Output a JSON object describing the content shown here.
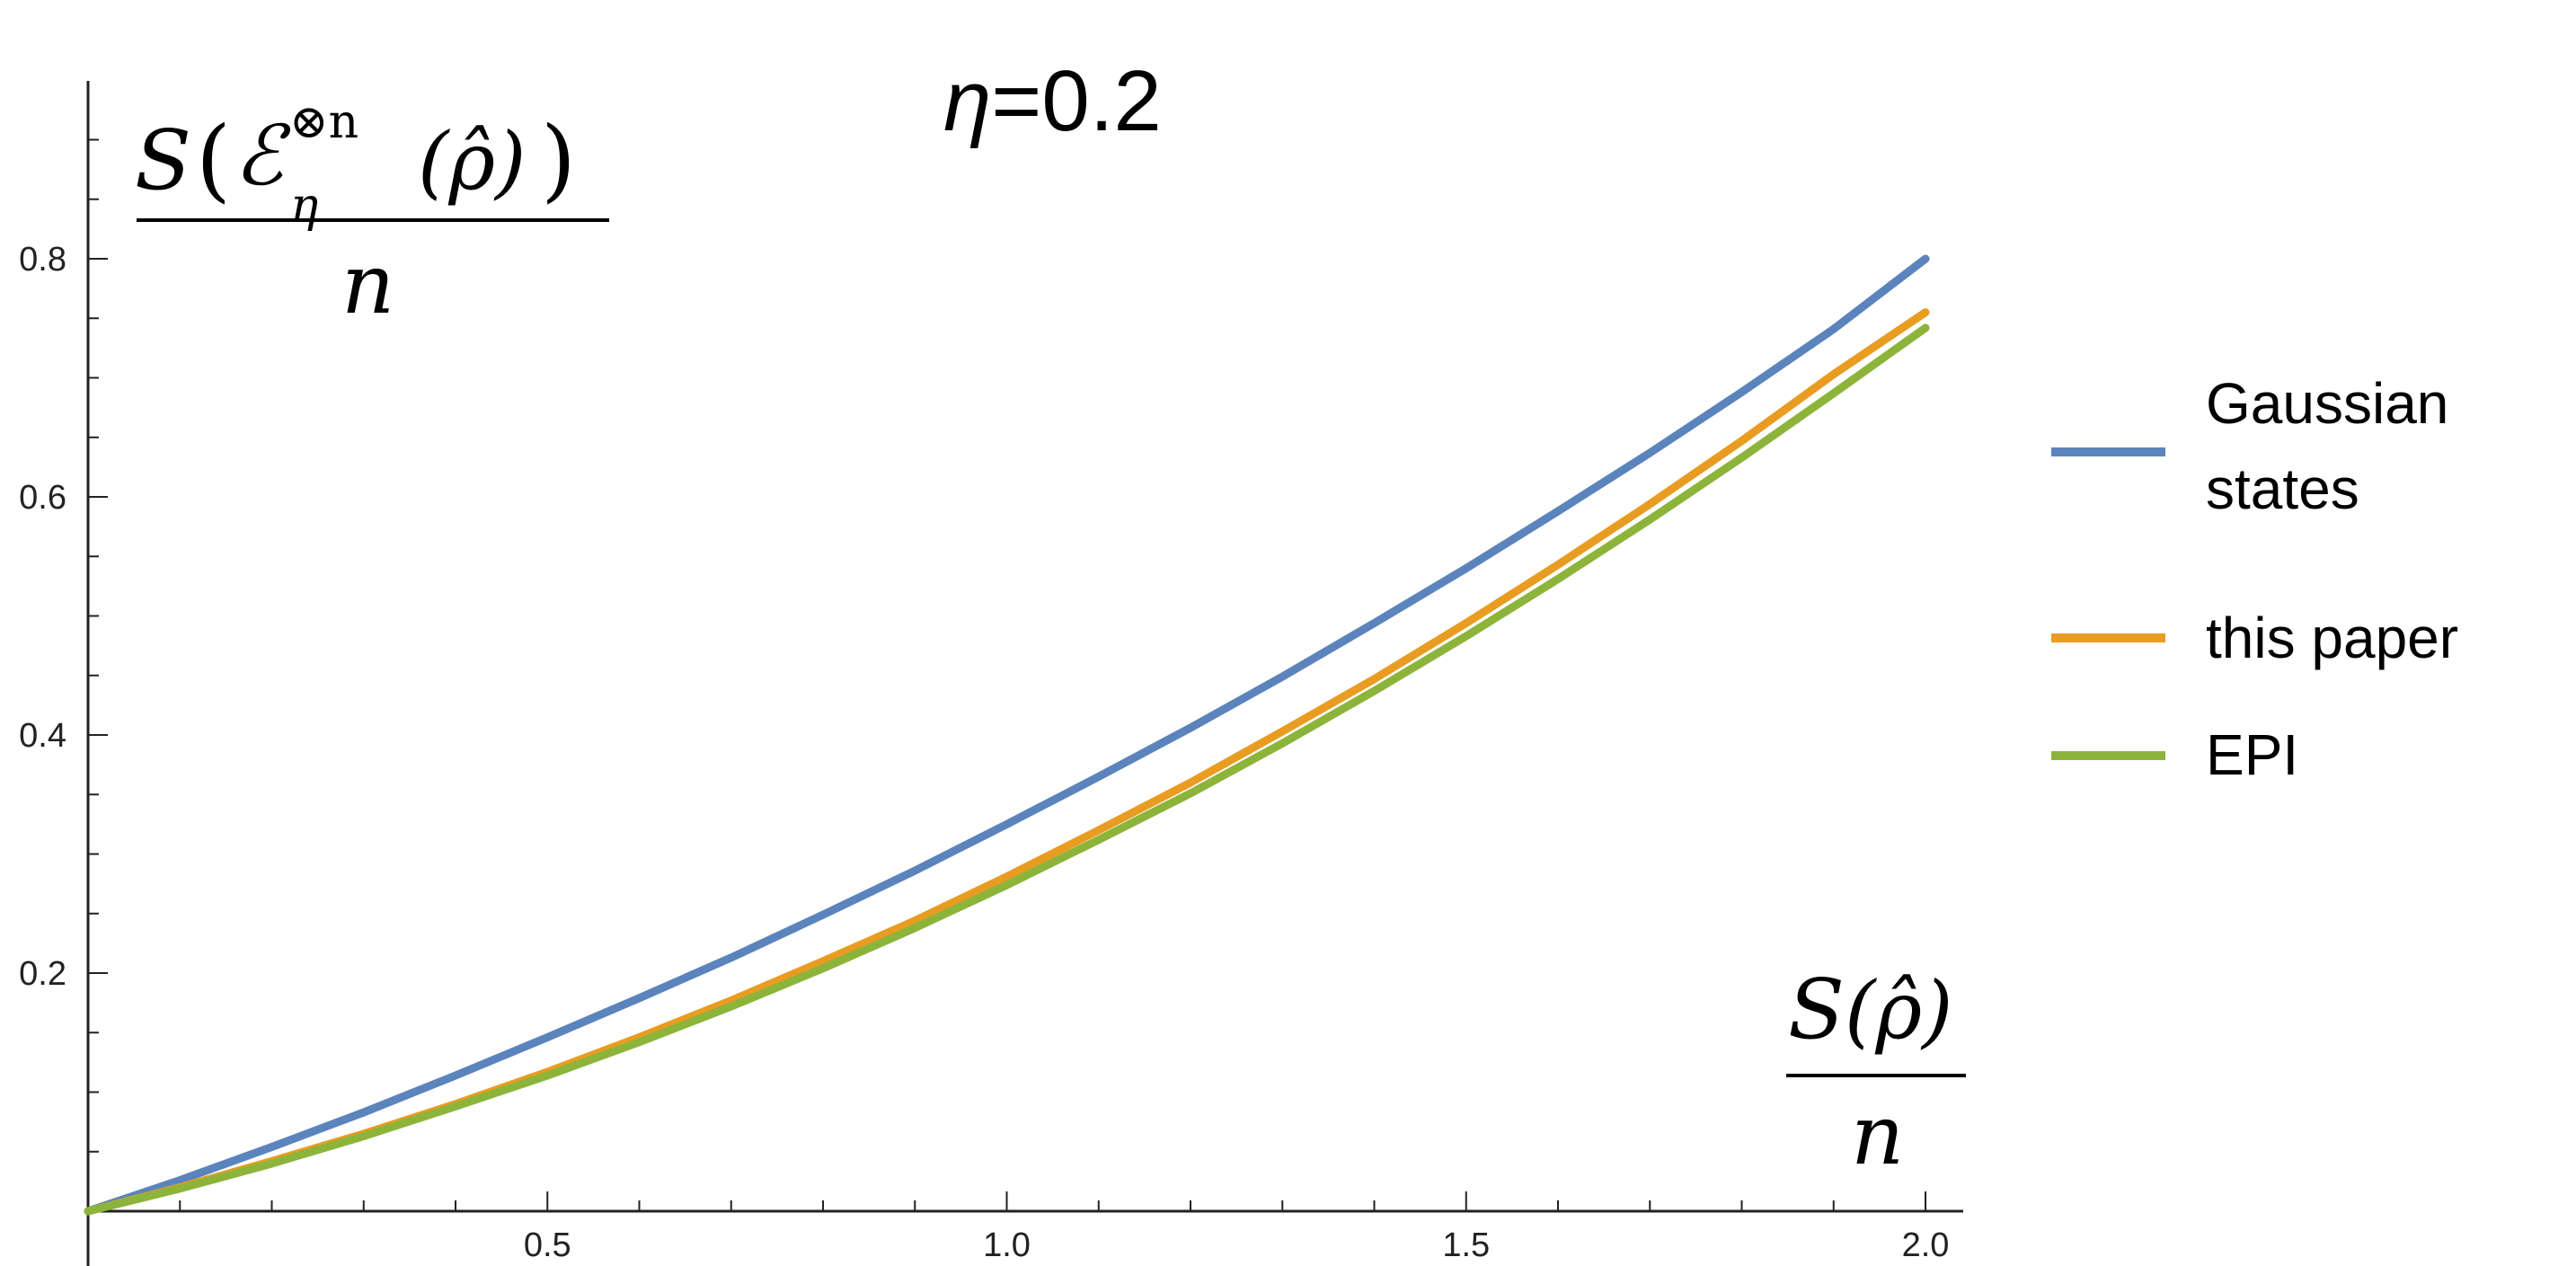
{
  "chart_data": {
    "type": "line",
    "title": {
      "symbol": "η",
      "value_text": "=0.2"
    },
    "eta": 0.2,
    "xlim": [
      0,
      2.0
    ],
    "ylim": [
      0,
      0.9
    ],
    "x_ticks": [
      {
        "value": 0.5,
        "label": "0.5"
      },
      {
        "value": 1.0,
        "label": "1.0"
      },
      {
        "value": 1.5,
        "label": "1.5"
      },
      {
        "value": 2.0,
        "label": "2.0"
      }
    ],
    "y_ticks": [
      {
        "value": 0.2,
        "label": "0.2"
      },
      {
        "value": 0.4,
        "label": "0.4"
      },
      {
        "value": 0.6,
        "label": "0.6"
      },
      {
        "value": 0.8,
        "label": "0.8"
      }
    ],
    "x_minor_step": 0.1,
    "y_minor_step": 0.05,
    "ylabel": {
      "numerator_main": "S",
      "numerator_channel": "ℰ",
      "numerator_sup": "⊗n",
      "numerator_sub": "η",
      "numerator_arg": "(ρ̂)",
      "denominator": "n"
    },
    "xlabel": {
      "numerator_main": "S",
      "numerator_arg": "(ρ̂)",
      "denominator": "n"
    },
    "grid": false,
    "legend_position": "right",
    "x": [
      0,
      0.1,
      0.2,
      0.3,
      0.4,
      0.5,
      0.6,
      0.7,
      0.8,
      0.9,
      1.0,
      1.1,
      1.2,
      1.3,
      1.4,
      1.5,
      1.6,
      1.7,
      1.8,
      1.9,
      2.0
    ],
    "series": [
      {
        "name_lines": [
          "Gaussian",
          "states"
        ],
        "color": "#5b84bd",
        "values": [
          0,
          0.026,
          0.054,
          0.083,
          0.114,
          0.146,
          0.179,
          0.213,
          0.249,
          0.286,
          0.325,
          0.365,
          0.406,
          0.449,
          0.494,
          0.54,
          0.588,
          0.637,
          0.688,
          0.741,
          0.8
        ]
      },
      {
        "name_lines": [
          "this paper"
        ],
        "color": "#e99c22",
        "values": [
          0,
          0.02,
          0.042,
          0.065,
          0.09,
          0.117,
          0.146,
          0.177,
          0.21,
          0.244,
          0.281,
          0.32,
          0.36,
          0.403,
          0.447,
          0.494,
          0.543,
          0.594,
          0.647,
          0.703,
          0.755
        ]
      },
      {
        "name_lines": [
          "EPI"
        ],
        "color": "#8db43a",
        "values": [
          0,
          0.019,
          0.04,
          0.063,
          0.088,
          0.114,
          0.142,
          0.172,
          0.204,
          0.238,
          0.274,
          0.312,
          0.351,
          0.393,
          0.437,
          0.483,
          0.531,
          0.581,
          0.633,
          0.687,
          0.742
        ]
      }
    ]
  }
}
